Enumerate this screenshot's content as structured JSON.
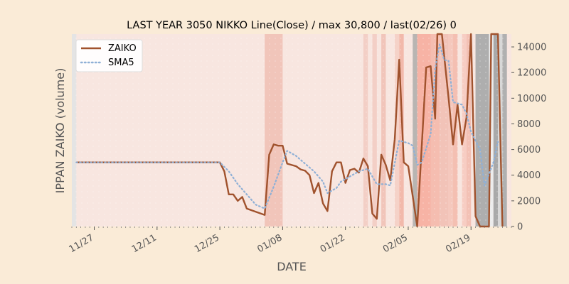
{
  "chart_data": {
    "type": "line",
    "title": "LAST YEAR 3050 NIKKO Line(Close) / max 30,800 / last(02/26) 0",
    "xlabel": "DATE",
    "ylabel": "IPPAN ZAIKO (volume)",
    "ylim": [
      0,
      15000
    ],
    "xlim": [
      "2022-11-22",
      "2023-02-28"
    ],
    "yticks": [
      0,
      2000,
      4000,
      6000,
      8000,
      10000,
      12000,
      14000
    ],
    "xticks": [
      {
        "date": "2022-11-27",
        "label": "11/27"
      },
      {
        "date": "2022-12-11",
        "label": "12/11"
      },
      {
        "date": "2022-12-25",
        "label": "12/25"
      },
      {
        "date": "2023-01-08",
        "label": "01/08"
      },
      {
        "date": "2023-01-22",
        "label": "01/22"
      },
      {
        "date": "2023-02-05",
        "label": "02/05"
      },
      {
        "date": "2023-02-19",
        "label": "02/19"
      }
    ],
    "legend": {
      "position": "top-left",
      "entries": [
        "ZAIKO",
        "SMA5"
      ]
    },
    "series": [
      {
        "name": "ZAIKO",
        "color": "#a0522d",
        "style": "solid",
        "points": [
          [
            "2022-11-23",
            5000
          ],
          [
            "2022-12-24",
            5000
          ],
          [
            "2022-12-25",
            5000
          ],
          [
            "2022-12-26",
            4300
          ],
          [
            "2022-12-27",
            2500
          ],
          [
            "2022-12-28",
            2500
          ],
          [
            "2022-12-29",
            2000
          ],
          [
            "2022-12-30",
            2300
          ],
          [
            "2022-12-31",
            1400
          ],
          [
            "2023-01-04",
            900
          ],
          [
            "2023-01-05",
            5600
          ],
          [
            "2023-01-06",
            6400
          ],
          [
            "2023-01-07",
            6300
          ],
          [
            "2023-01-08",
            6300
          ],
          [
            "2023-01-09",
            4900
          ],
          [
            "2023-01-11",
            4700
          ],
          [
            "2023-01-12",
            4450
          ],
          [
            "2023-01-13",
            4350
          ],
          [
            "2023-01-14",
            4000
          ],
          [
            "2023-01-15",
            2600
          ],
          [
            "2023-01-16",
            3400
          ],
          [
            "2023-01-17",
            1800
          ],
          [
            "2023-01-18",
            1200
          ],
          [
            "2023-01-19",
            4300
          ],
          [
            "2023-01-20",
            5000
          ],
          [
            "2023-01-21",
            5000
          ],
          [
            "2023-01-22",
            3400
          ],
          [
            "2023-01-23",
            4400
          ],
          [
            "2023-01-24",
            4500
          ],
          [
            "2023-01-25",
            4200
          ],
          [
            "2023-01-26",
            5300
          ],
          [
            "2023-01-27",
            4700
          ],
          [
            "2023-01-28",
            1000
          ],
          [
            "2023-01-29",
            600
          ],
          [
            "2023-01-30",
            5600
          ],
          [
            "2023-01-31",
            4800
          ],
          [
            "2023-02-01",
            3600
          ],
          [
            "2023-02-02",
            6800
          ],
          [
            "2023-02-03",
            13000
          ],
          [
            "2023-02-04",
            5000
          ],
          [
            "2023-02-05",
            4700
          ],
          [
            "2023-02-07",
            0
          ],
          [
            "2023-02-09",
            12400
          ],
          [
            "2023-02-10",
            12500
          ],
          [
            "2023-02-11",
            8400
          ],
          [
            "2023-02-11.5",
            15000
          ],
          [
            "2023-02-12.5",
            15000
          ],
          [
            "2023-02-14",
            10000
          ],
          [
            "2023-02-15",
            6400
          ],
          [
            "2023-02-16",
            9500
          ],
          [
            "2023-02-17",
            6400
          ],
          [
            "2023-02-18",
            8500
          ],
          [
            "2023-02-19",
            15000
          ],
          [
            "2023-02-20",
            800
          ],
          [
            "2023-02-21",
            0
          ],
          [
            "2023-02-22",
            0
          ],
          [
            "2023-02-23",
            0
          ],
          [
            "2023-02-23.5",
            15000
          ],
          [
            "2023-02-24",
            15000
          ],
          [
            "2023-02-25",
            15000
          ],
          [
            "2023-02-26",
            0
          ]
        ]
      },
      {
        "name": "SMA5",
        "color": "#8fb0d6",
        "style": "dotted",
        "points": [
          [
            "2022-11-23",
            5000
          ],
          [
            "2022-12-25",
            5000
          ],
          [
            "2022-12-27",
            4300
          ],
          [
            "2022-12-29",
            3300
          ],
          [
            "2022-12-31",
            2500
          ],
          [
            "2023-01-02",
            1700
          ],
          [
            "2023-01-04",
            1400
          ],
          [
            "2023-01-06",
            3100
          ],
          [
            "2023-01-08",
            5000
          ],
          [
            "2023-01-09",
            5900
          ],
          [
            "2023-01-11",
            5500
          ],
          [
            "2023-01-13",
            4900
          ],
          [
            "2023-01-15",
            4300
          ],
          [
            "2023-01-17",
            3500
          ],
          [
            "2023-01-18",
            2600
          ],
          [
            "2023-01-20",
            3000
          ],
          [
            "2023-01-21",
            3500
          ],
          [
            "2023-01-23",
            3900
          ],
          [
            "2023-01-25",
            4300
          ],
          [
            "2023-01-27",
            4500
          ],
          [
            "2023-01-29",
            3300
          ],
          [
            "2023-01-31",
            3300
          ],
          [
            "2023-02-01",
            3200
          ],
          [
            "2023-02-03",
            6700
          ],
          [
            "2023-02-05",
            6500
          ],
          [
            "2023-02-06",
            6300
          ],
          [
            "2023-02-07",
            4800
          ],
          [
            "2023-02-08",
            5000
          ],
          [
            "2023-02-10",
            7200
          ],
          [
            "2023-02-11",
            12300
          ],
          [
            "2023-02-12",
            14200
          ],
          [
            "2023-02-13",
            13000
          ],
          [
            "2023-02-14",
            12900
          ],
          [
            "2023-02-15",
            9700
          ],
          [
            "2023-02-17",
            9500
          ],
          [
            "2023-02-18",
            8800
          ],
          [
            "2023-02-19",
            7400
          ],
          [
            "2023-02-21",
            6000
          ],
          [
            "2023-02-22",
            3200
          ],
          [
            "2023-02-24",
            5000
          ],
          [
            "2023-02-25",
            6600
          ]
        ]
      }
    ]
  }
}
